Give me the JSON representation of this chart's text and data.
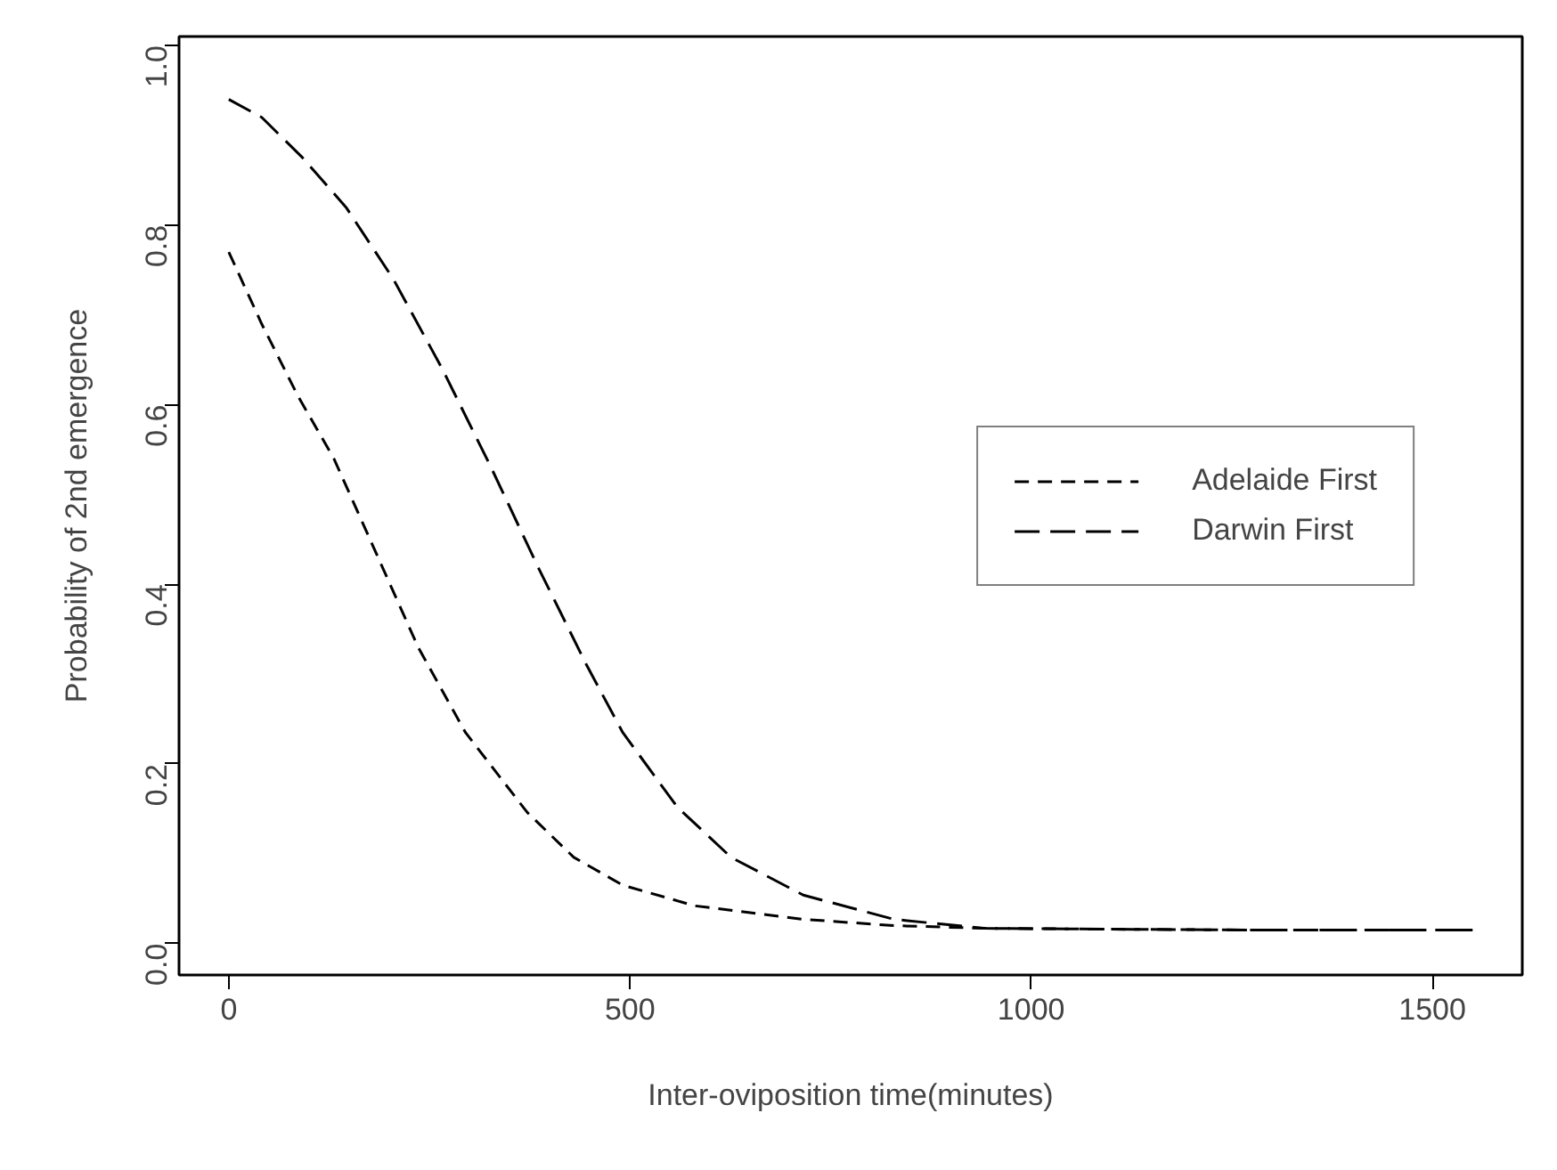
{
  "chart_data": {
    "type": "line",
    "xlabel": "Inter-oviposition time(minutes)",
    "ylabel": "Probability of 2nd emergence",
    "xlim": [
      -62,
      1612
    ],
    "ylim": [
      -0.035,
      1.01
    ],
    "xticks": [
      0,
      500,
      1000,
      1500
    ],
    "yticks": [
      {
        "value": 0,
        "label": "0.0"
      },
      0.2,
      0.4,
      0.6,
      0.8,
      {
        "value": 1,
        "label": "1.0"
      }
    ],
    "grid": false,
    "legend": "right",
    "line_style": "dashed",
    "marker": "none",
    "series": [
      {
        "name": "Adelaide First",
        "color": "#000000",
        "x": [
          0,
          41,
          86,
          131,
          191,
          236,
          295,
          372,
          430,
          491,
          581,
          716,
          829,
          941,
          1100,
          1300,
          1550
        ],
        "values": [
          0.77,
          0.69,
          0.61,
          0.54,
          0.42,
          0.33,
          0.235,
          0.146,
          0.096,
          0.065,
          0.042,
          0.027,
          0.02,
          0.017,
          0.016,
          0.015,
          0.015
        ]
      },
      {
        "name": "Darwin First",
        "color": "#000000",
        "x": [
          0,
          41,
          92,
          146,
          205,
          266,
          327,
          385,
          446,
          491,
          559,
          626,
          716,
          829,
          941,
          1100,
          1300,
          1550
        ],
        "values": [
          0.94,
          0.92,
          0.875,
          0.82,
          0.74,
          0.64,
          0.53,
          0.42,
          0.31,
          0.235,
          0.152,
          0.096,
          0.054,
          0.027,
          0.017,
          0.016,
          0.015,
          0.015
        ]
      }
    ]
  }
}
